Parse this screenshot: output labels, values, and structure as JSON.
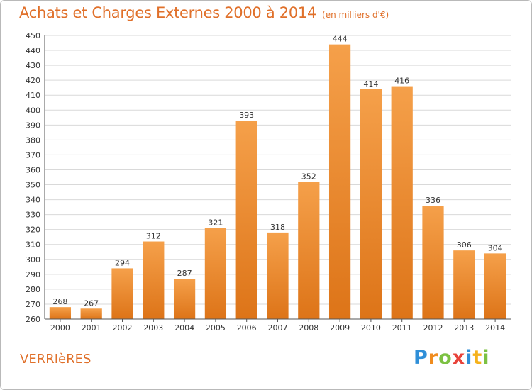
{
  "chart_data": {
    "type": "bar",
    "title": "Achats et Charges Externes 2000 à 2014",
    "subtitle": "(en milliers d'€)",
    "categories": [
      "2000",
      "2001",
      "2002",
      "2003",
      "2004",
      "2005",
      "2006",
      "2007",
      "2008",
      "2009",
      "2010",
      "2011",
      "2012",
      "2013",
      "2014"
    ],
    "values": [
      268,
      267,
      294,
      312,
      287,
      321,
      393,
      318,
      352,
      444,
      414,
      416,
      336,
      306,
      304
    ],
    "value_labels": [
      "268",
      "267",
      "294",
      "312",
      "287",
      "321",
      "393",
      "318",
      "352",
      "444",
      "414",
      "416",
      "336",
      "306",
      "304"
    ],
    "ylim": [
      260,
      450
    ],
    "yticks": [
      260,
      270,
      280,
      290,
      300,
      310,
      320,
      330,
      340,
      350,
      360,
      370,
      380,
      390,
      400,
      410,
      420,
      430,
      440,
      450
    ],
    "ytick_labels": [
      "260",
      "270",
      "280",
      "290",
      "300",
      "310",
      "320",
      "330",
      "340",
      "350",
      "360",
      "370",
      "380",
      "390",
      "400",
      "410",
      "420",
      "430",
      "440",
      "450"
    ],
    "grid": true,
    "bar_color_top": "#f5a04a",
    "bar_color_bottom": "#dd7418",
    "grid_color": "#d9d9d9"
  },
  "footer": {
    "place": "VERRIèRES",
    "logo": [
      "P",
      "r",
      "o",
      "x",
      "i",
      "t",
      "i"
    ],
    "logo_colors": [
      "#2f8fd8",
      "#f08c1e",
      "#7cc142",
      "#e8433a",
      "#2f8fd8",
      "#f5b21c",
      "#7cc142"
    ]
  }
}
